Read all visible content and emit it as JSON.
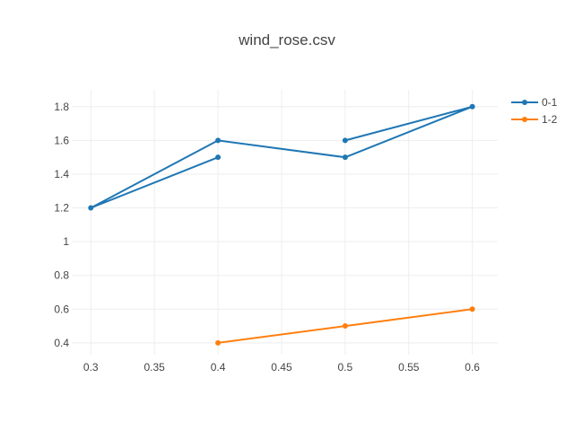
{
  "chart_data": {
    "type": "line",
    "title": "wind_rose.csv",
    "xlabel": "",
    "ylabel": "",
    "xlim": [
      0.285,
      0.62
    ],
    "ylim": [
      0.33,
      1.9
    ],
    "x_ticks": [
      0.3,
      0.35,
      0.4,
      0.45,
      0.5,
      0.55,
      0.6
    ],
    "x_tick_labels": [
      "0.3",
      "0.35",
      "0.4",
      "0.45",
      "0.5",
      "0.55",
      "0.6"
    ],
    "y_ticks": [
      0.4,
      0.6,
      0.8,
      1.0,
      1.2,
      1.4,
      1.6,
      1.8
    ],
    "y_tick_labels": [
      "0.4",
      "0.6",
      "0.8",
      "1",
      "1.2",
      "1.4",
      "1.6",
      "1.8"
    ],
    "grid": true,
    "legend_position": "top-right",
    "series": [
      {
        "name": "0-1",
        "color": "#1f77b4",
        "x": [
          0.5,
          0.6,
          0.5,
          0.4,
          0.3,
          0.4
        ],
        "y": [
          1.6,
          1.8,
          1.5,
          1.6,
          1.2,
          1.5
        ]
      },
      {
        "name": "1-2",
        "color": "#ff7f0e",
        "x": [
          0.4,
          0.5,
          0.6
        ],
        "y": [
          0.4,
          0.5,
          0.6
        ]
      }
    ]
  }
}
